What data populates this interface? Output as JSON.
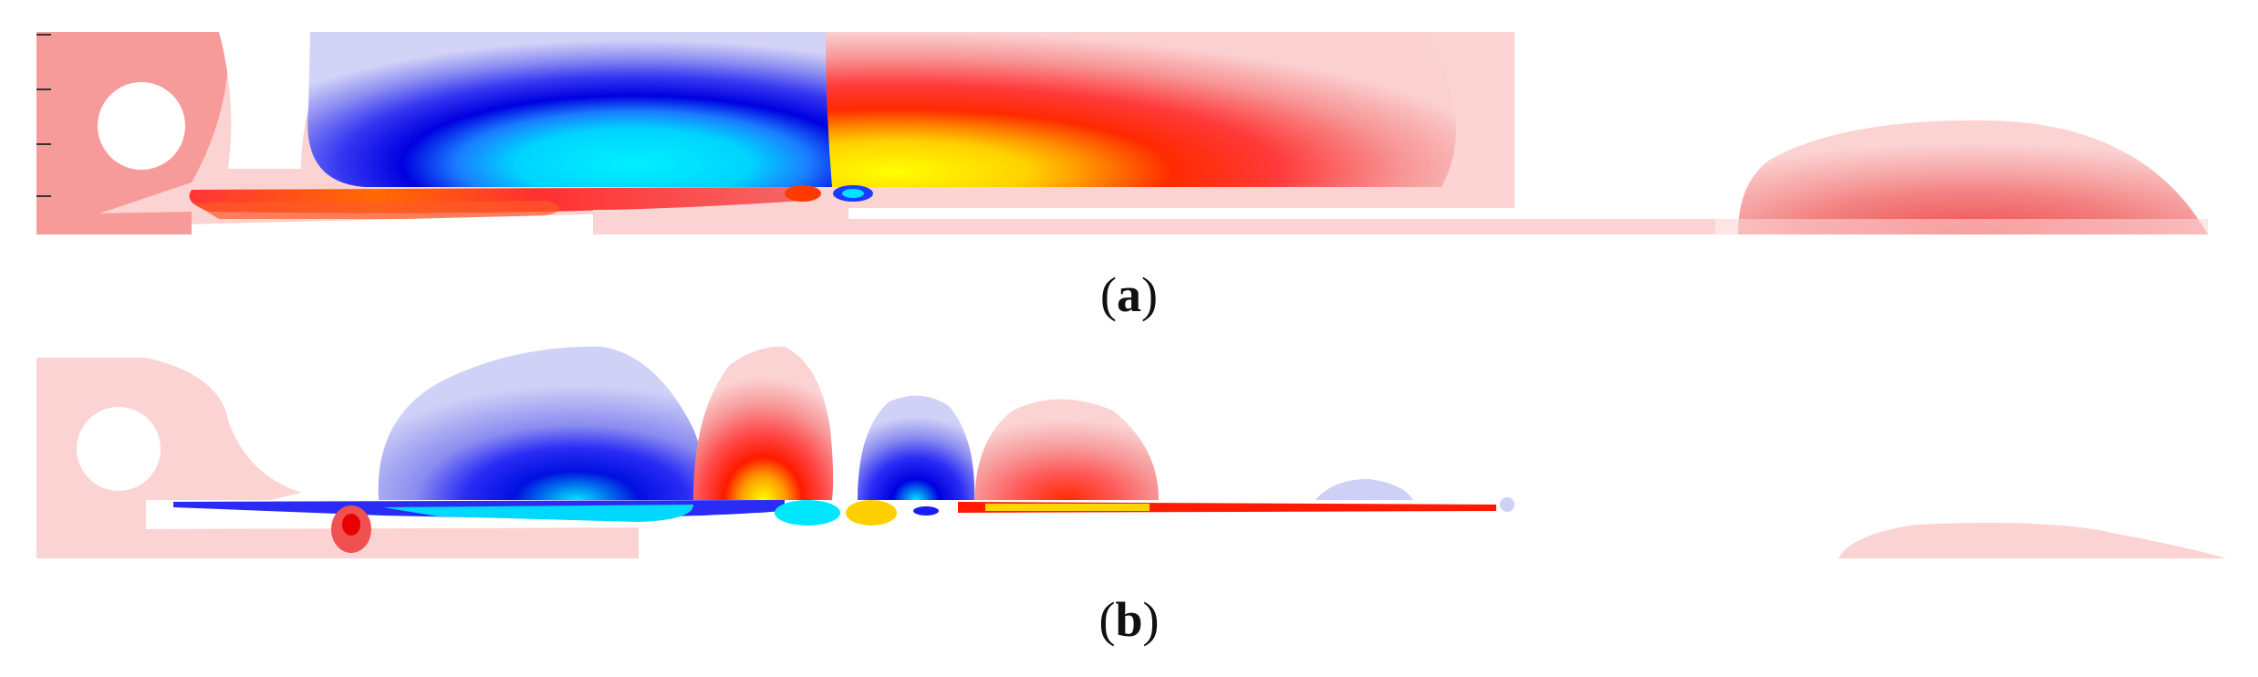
{
  "figure": {
    "panels": [
      {
        "id": "a",
        "caption": "a"
      },
      {
        "id": "b",
        "caption": "b"
      }
    ],
    "colors": {
      "light_red": "#fbd3d3",
      "mid_red": "#f79a9a",
      "red": "#ff3030",
      "deep_red": "#e60000",
      "orange": "#ff8a00",
      "yellow": "#ffff00",
      "light_blue": "#cfd0f6",
      "mid_blue": "#8a8cf0",
      "blue": "#2a2cf5",
      "deep_blue": "#0000d8",
      "cyan": "#00e6ff",
      "white": "#ffffff"
    }
  }
}
